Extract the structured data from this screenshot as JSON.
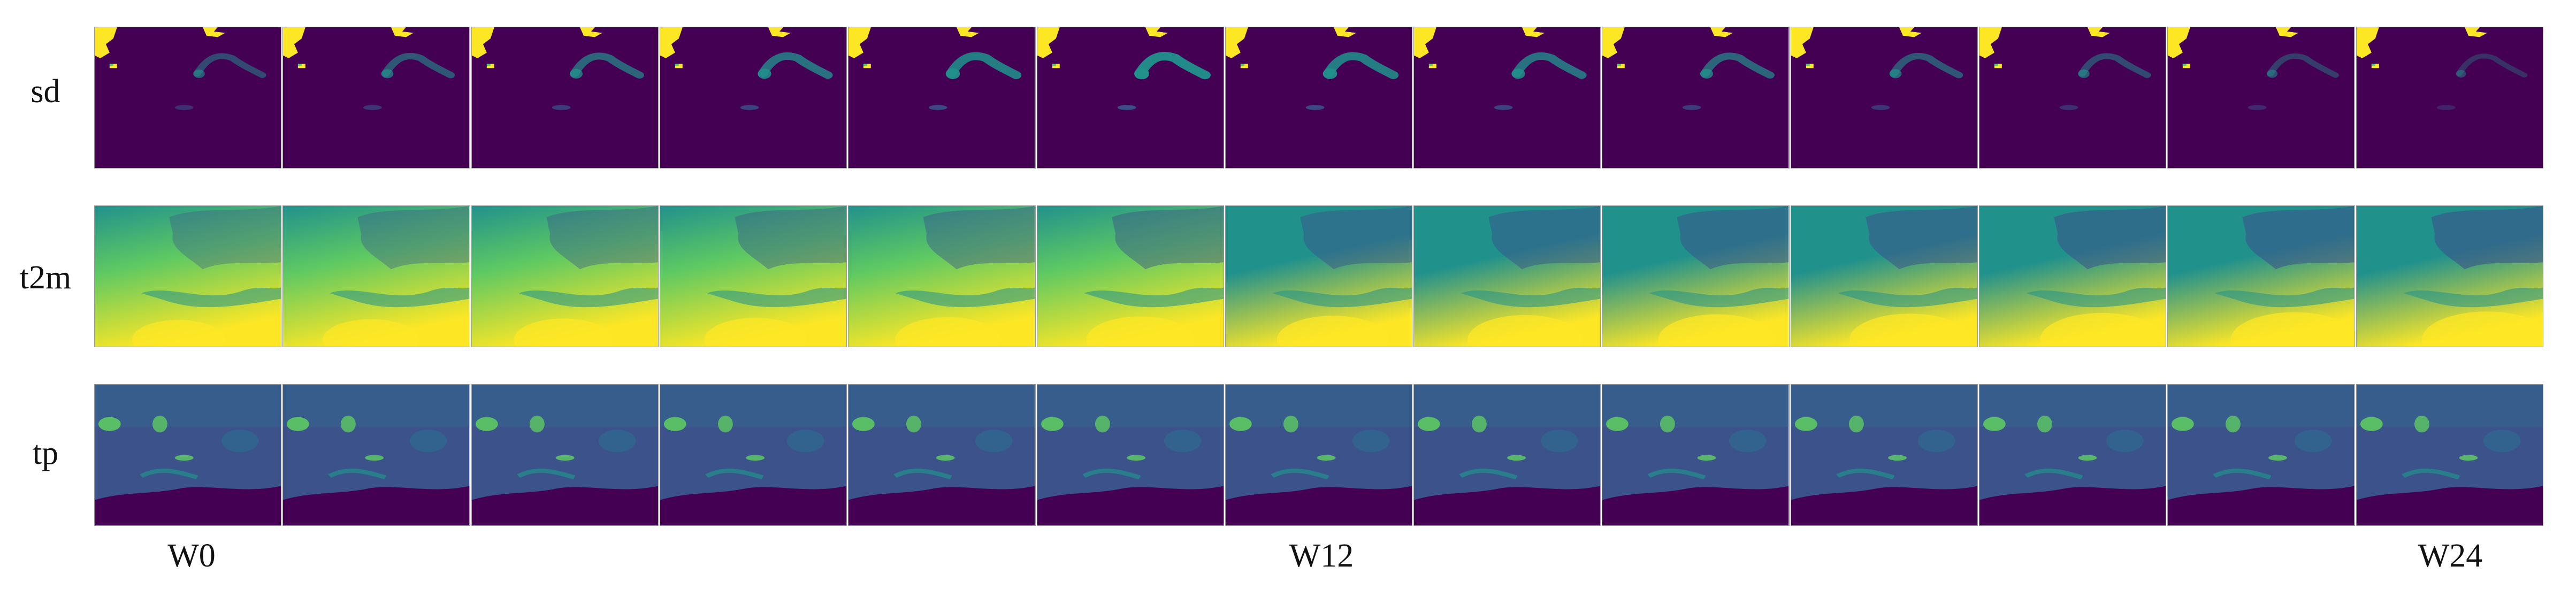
{
  "rows": [
    {
      "label": "sd",
      "variable": "sd",
      "colormap": "viridis"
    },
    {
      "label": "t2m",
      "variable": "t2m",
      "colormap": "viridis"
    },
    {
      "label": "tp",
      "variable": "tp",
      "colormap": "viridis"
    }
  ],
  "frame_count": 13,
  "week_labels": {
    "first": "W0",
    "middle": "W12",
    "last": "W24"
  },
  "colors": {
    "viridis_dark": "#440154",
    "viridis_blue": "#3b528b",
    "viridis_teal": "#21918c",
    "viridis_green": "#5ec962",
    "viridis_yellow": "#fde725"
  }
}
